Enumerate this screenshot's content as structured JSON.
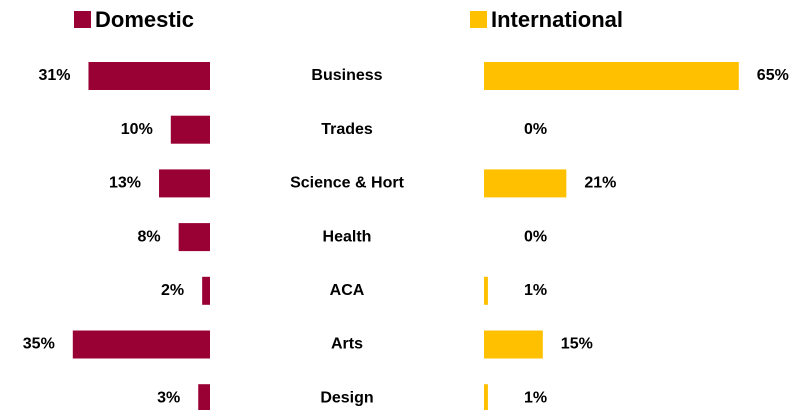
{
  "chart_data": {
    "type": "butterfly",
    "categories": [
      "Business",
      "Trades",
      "Science & Hort",
      "Health",
      "ACA",
      "Arts",
      "Design"
    ],
    "series": [
      {
        "name": "Domestic",
        "color": "#990033",
        "values": [
          31,
          10,
          13,
          8,
          2,
          35,
          3
        ],
        "value_labels": [
          "31%",
          "10%",
          "13%",
          "8%",
          "2%",
          "35%",
          "3%"
        ]
      },
      {
        "name": "International",
        "color": "#ffc000",
        "values": [
          65,
          0,
          21,
          0,
          1,
          15,
          1
        ],
        "value_labels": [
          "65%",
          "0%",
          "21%",
          "0%",
          "1%",
          "15%",
          "1%"
        ]
      }
    ]
  }
}
